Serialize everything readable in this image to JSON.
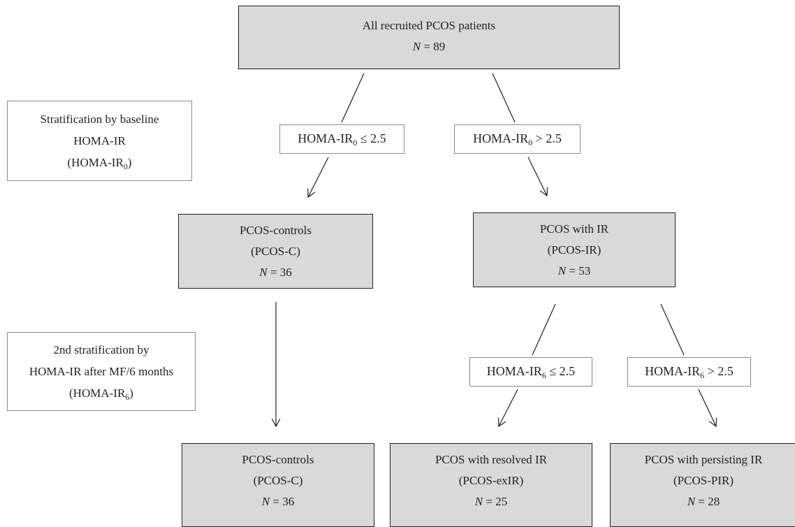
{
  "nodes": {
    "all": {
      "title": "All recruited PCOS patients",
      "n_label": "N",
      "n_value": "= 89"
    },
    "pcos_c": {
      "title": "PCOS-controls",
      "abbr": "(PCOS-C)",
      "n_label": "N",
      "n_value": "= 36"
    },
    "pcos_ir": {
      "title": "PCOS with IR",
      "abbr": "(PCOS-IR)",
      "n_label": "N",
      "n_value": "= 53"
    },
    "pcos_c_final": {
      "title": "PCOS-controls",
      "abbr": "(PCOS-C)",
      "n_label": "N",
      "n_value": "= 36"
    },
    "pcos_exir": {
      "title": "PCOS with resolved IR",
      "abbr": "(PCOS-exIR)",
      "n_label": "N",
      "n_value": "= 25"
    },
    "pcos_pir": {
      "title": "PCOS with persisting IR",
      "abbr": "(PCOS-PIR)",
      "n_label": "N",
      "n_value": "= 28"
    }
  },
  "conditions": {
    "base": "HOMA-IR",
    "sub0": "0",
    "sub6": "6",
    "le": "≤ 2.5",
    "gt": "> 2.5"
  },
  "stratification": {
    "first": {
      "line1": "Stratification by baseline",
      "line2": "HOMA-IR",
      "line3_prefix": "(HOMA-IR",
      "line3_sub": "0",
      "line3_suffix": ")"
    },
    "second": {
      "line1": "2nd stratification by",
      "line2": "HOMA-IR after MF/6 months",
      "line3_prefix": "(HOMA-IR",
      "line3_sub": "6",
      "line3_suffix": ")"
    }
  }
}
